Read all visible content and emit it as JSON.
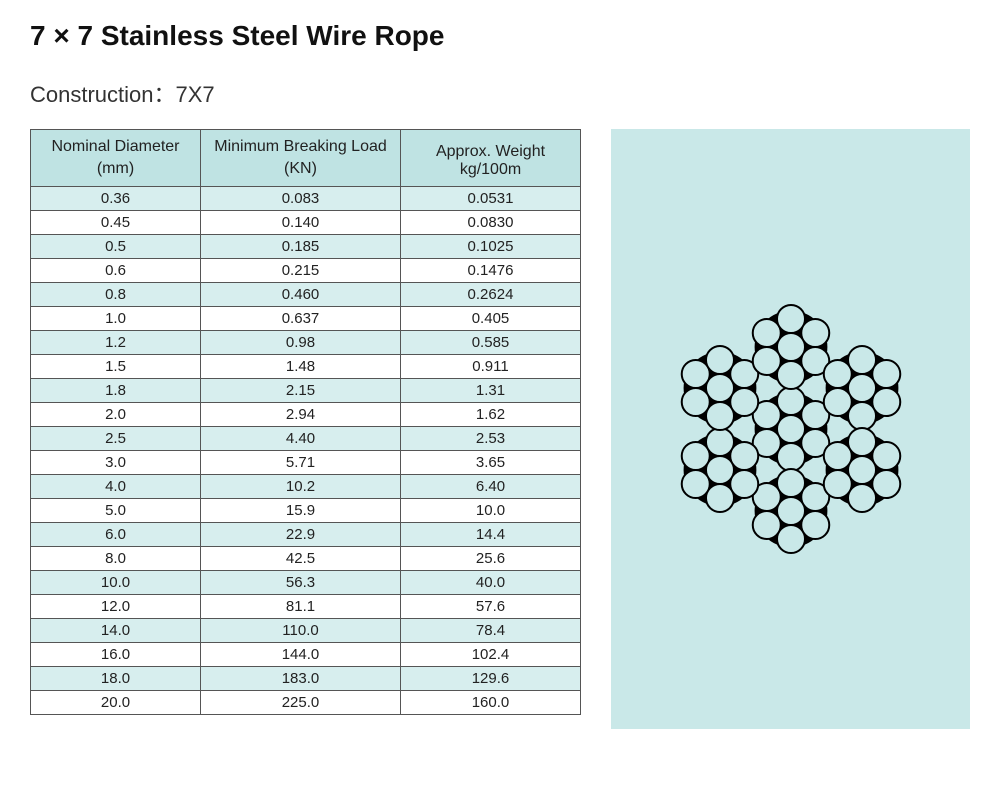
{
  "title": "7 × 7 Stainless Steel Wire Rope",
  "subtitle": "Construction：7X7",
  "table": {
    "headers": {
      "dia_top": "Nominal Diameter",
      "dia_bot": "(mm)",
      "load_top": "Minimum Breaking Load",
      "load_bot": "(KN)",
      "wt_top": "Approx. Weight",
      "wt_bot": "kg/100m"
    },
    "rows": [
      {
        "dia": "0.36",
        "load": "0.083",
        "wt": "0.0531"
      },
      {
        "dia": "0.45",
        "load": "0.140",
        "wt": "0.0830"
      },
      {
        "dia": "0.5",
        "load": "0.185",
        "wt": "0.1025"
      },
      {
        "dia": "0.6",
        "load": "0.215",
        "wt": "0.1476"
      },
      {
        "dia": "0.8",
        "load": "0.460",
        "wt": "0.2624"
      },
      {
        "dia": "1.0",
        "load": "0.637",
        "wt": "0.405"
      },
      {
        "dia": "1.2",
        "load": "0.98",
        "wt": "0.585"
      },
      {
        "dia": "1.5",
        "load": "1.48",
        "wt": "0.911"
      },
      {
        "dia": "1.8",
        "load": "2.15",
        "wt": "1.31"
      },
      {
        "dia": "2.0",
        "load": "2.94",
        "wt": "1.62"
      },
      {
        "dia": "2.5",
        "load": "4.40",
        "wt": "2.53"
      },
      {
        "dia": "3.0",
        "load": "5.71",
        "wt": "3.65"
      },
      {
        "dia": "4.0",
        "load": "10.2",
        "wt": "6.40"
      },
      {
        "dia": "5.0",
        "load": "15.9",
        "wt": "10.0"
      },
      {
        "dia": "6.0",
        "load": "22.9",
        "wt": "14.4"
      },
      {
        "dia": "8.0",
        "load": "42.5",
        "wt": "25.6"
      },
      {
        "dia": "10.0",
        "load": "56.3",
        "wt": "40.0"
      },
      {
        "dia": "12.0",
        "load": "81.1",
        "wt": "57.6"
      },
      {
        "dia": "14.0",
        "load": "110.0",
        "wt": "78.4"
      },
      {
        "dia": "16.0",
        "load": "144.0",
        "wt": "102.4"
      },
      {
        "dia": "18.0",
        "load": "183.0",
        "wt": "129.6"
      },
      {
        "dia": "20.0",
        "load": "225.0",
        "wt": "160.0"
      }
    ],
    "row_odd_bg": "#d7eeee",
    "row_even_bg": "#ffffff",
    "header_bg": "#bfe3e3",
    "border_color": "#555555",
    "font_size_body": 15,
    "font_size_header": 16
  },
  "diagram": {
    "type": "wire-rope-cross-section",
    "strands": 7,
    "wires_per_strand": 7,
    "panel_bg": "#c9e8e8",
    "core_fill": "#000000",
    "wire_fill": "#c9e8e8",
    "wire_stroke": "#000000",
    "wire_stroke_width": 2,
    "wire_radius": 14,
    "strand_pitch": 82,
    "svg_size": 300,
    "strand_centers_hex_angle_deg": [
      90,
      150,
      210,
      270,
      330,
      30
    ]
  }
}
